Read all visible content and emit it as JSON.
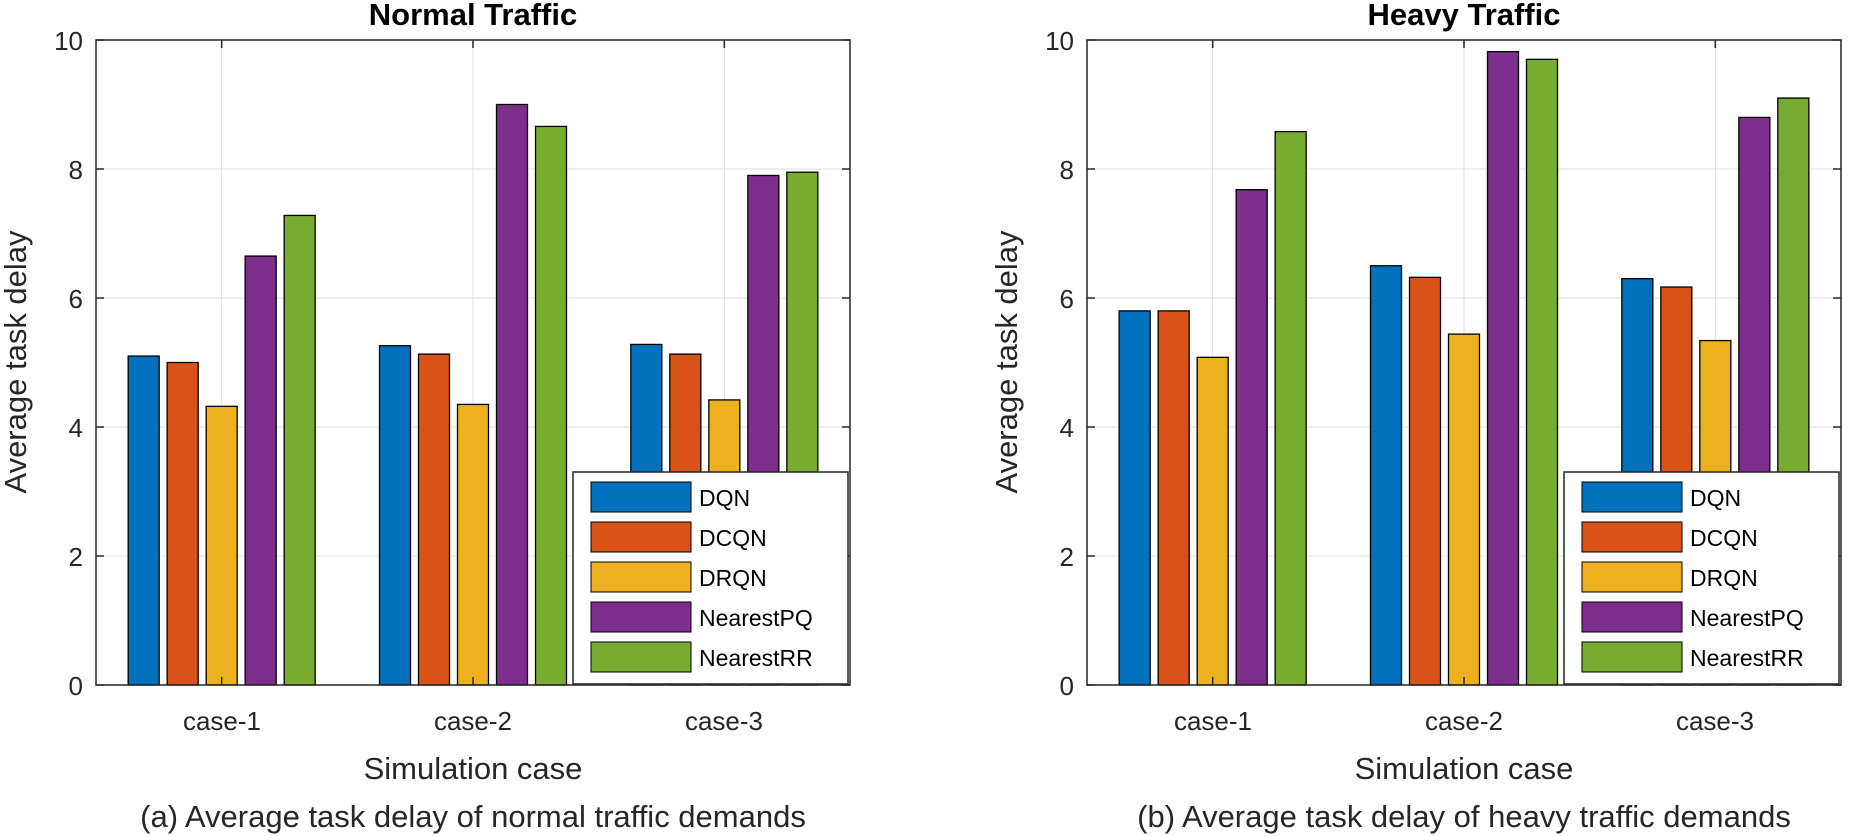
{
  "chart_data": [
    {
      "type": "bar",
      "title": "Normal Traffic",
      "caption": "(a) Average task delay of normal traffic demands",
      "xlabel": "Simulation case",
      "ylabel": "Average task delay",
      "categories": [
        "case-1",
        "case-2",
        "case-3"
      ],
      "ylim": [
        0,
        10
      ],
      "yticks": [
        "0",
        "2",
        "4",
        "6",
        "8",
        "10"
      ],
      "grid": true,
      "legend_position": "bottom-right",
      "series": [
        {
          "name": "DQN",
          "color": "#0072BD",
          "values": [
            5.1,
            5.26,
            5.28
          ]
        },
        {
          "name": "DCQN",
          "color": "#D95319",
          "values": [
            5.0,
            5.13,
            5.13
          ]
        },
        {
          "name": "DRQN",
          "color": "#EDB120",
          "values": [
            4.32,
            4.35,
            4.42
          ]
        },
        {
          "name": "NearestPQ",
          "color": "#7E2F8E",
          "values": [
            6.65,
            9.0,
            7.9
          ]
        },
        {
          "name": "NearestRR",
          "color": "#77AC30",
          "values": [
            7.28,
            8.66,
            7.95
          ]
        }
      ]
    },
    {
      "type": "bar",
      "title": "Heavy Traffic",
      "caption": "(b) Average task delay of heavy traffic demands",
      "xlabel": "Simulation case",
      "ylabel": "Average task delay",
      "categories": [
        "case-1",
        "case-2",
        "case-3"
      ],
      "ylim": [
        0,
        10
      ],
      "yticks": [
        "0",
        "2",
        "4",
        "6",
        "8",
        "10"
      ],
      "grid": true,
      "legend_position": "bottom-right",
      "series": [
        {
          "name": "DQN",
          "color": "#0072BD",
          "values": [
            5.8,
            6.5,
            6.3
          ]
        },
        {
          "name": "DCQN",
          "color": "#D95319",
          "values": [
            5.8,
            6.32,
            6.17
          ]
        },
        {
          "name": "DRQN",
          "color": "#EDB120",
          "values": [
            5.08,
            5.44,
            5.34
          ]
        },
        {
          "name": "NearestPQ",
          "color": "#7E2F8E",
          "values": [
            7.68,
            9.82,
            8.8
          ]
        },
        {
          "name": "NearestRR",
          "color": "#77AC30",
          "values": [
            8.58,
            9.7,
            9.1
          ]
        }
      ]
    }
  ]
}
